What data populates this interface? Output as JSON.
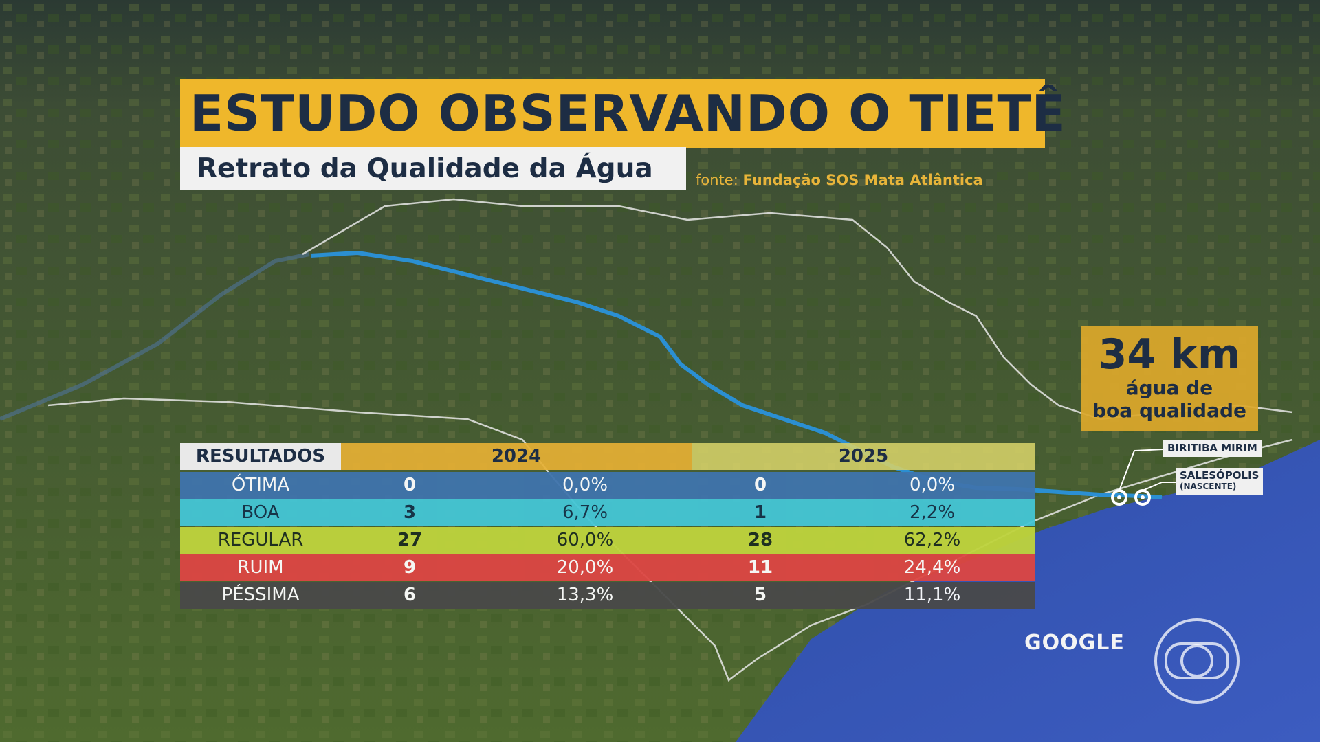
{
  "title": "ESTUDO OBSERVANDO O TIETÊ",
  "subtitle": "Retrato da Qualidade da Água",
  "source": {
    "prefix": "fonte:",
    "name": "Fundação SOS Mata Atlântica"
  },
  "callout": {
    "value": "34 km",
    "line1": "água de",
    "line2": "boa qualidade"
  },
  "locations": {
    "biritiba": "BIRITIBA MIRIM",
    "salesopolis": "SALESÓPOLIS",
    "salesopolis_note": "(NASCENTE)"
  },
  "map_credit": "GOOGLE",
  "table": {
    "header_label": "RESULTADOS",
    "year_a": "2024",
    "year_b": "2025",
    "rows": [
      {
        "name": "ÓTIMA",
        "n2024": "0",
        "p2024": "0,0%",
        "n2025": "0",
        "p2025": "0,0%",
        "bg": "#3f74ad",
        "fg": "#ffffff"
      },
      {
        "name": "BOA",
        "n2024": "3",
        "p2024": "6,7%",
        "n2025": "1",
        "p2025": "2,2%",
        "bg": "#44c6d6",
        "fg": "#15324a"
      },
      {
        "name": "REGULAR",
        "n2024": "27",
        "p2024": "60,0%",
        "n2025": "28",
        "p2025": "62,2%",
        "bg": "#bfd43d",
        "fg": "#1d2d20"
      },
      {
        "name": "RUIM",
        "n2024": "9",
        "p2024": "20,0%",
        "n2025": "11",
        "p2025": "24,4%",
        "bg": "#dd4643",
        "fg": "#ffffff"
      },
      {
        "name": "PÉSSIMA",
        "n2024": "6",
        "p2024": "13,3%",
        "n2025": "5",
        "p2025": "11,1%",
        "bg": "#494949",
        "fg": "#ffffff"
      }
    ]
  },
  "colors": {
    "title_bg": "#efb72b",
    "title_text": "#1d2d44",
    "river": "#2b8fd2",
    "ocean": "#3c57b4"
  }
}
